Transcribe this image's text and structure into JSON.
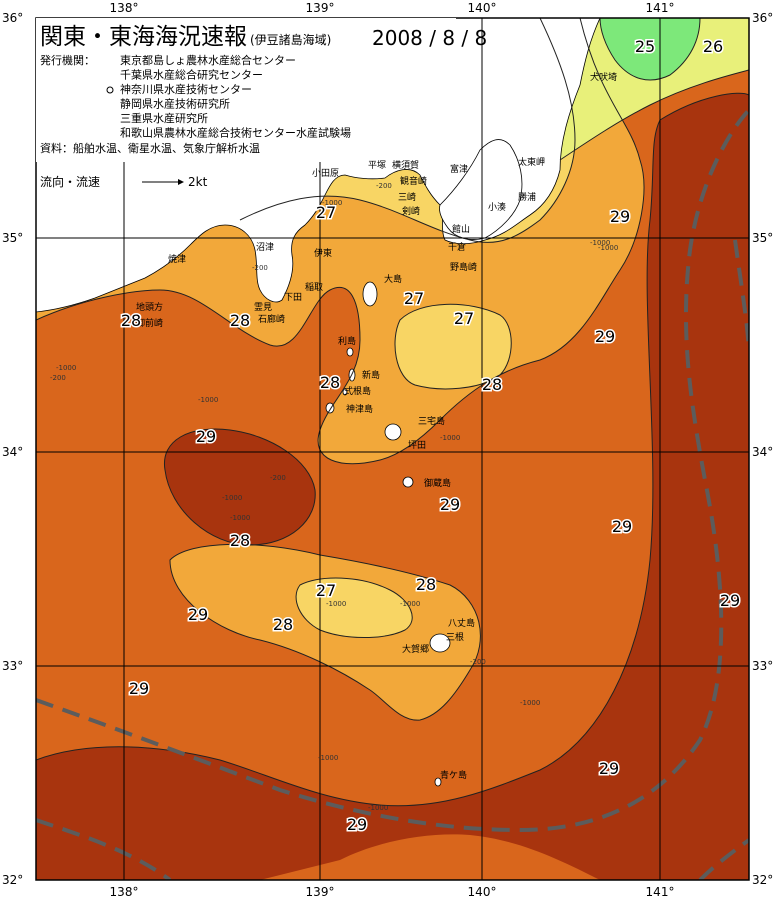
{
  "header": {
    "title": "関東・東海海況速報",
    "area": "(伊豆諸島海域)",
    "date": "2008 / 8 / 8"
  },
  "issuers": {
    "label": "発行機関：",
    "list": [
      "東京都島しょ農林水産総合センター",
      "千葉県水産総合研究センター",
      "神奈川県水産技術センター",
      "静岡県水産技術研究所",
      "三重県水産研究所",
      "和歌山県農林水産総合技術センター水産試験場"
    ],
    "marker": "o"
  },
  "source": "資料：船舶水温、衛星水温、気象庁解析水温",
  "flow_legend": {
    "label": "流向・流速",
    "scale": "2kt"
  },
  "axes": {
    "lon_ticks": [
      "138°",
      "139°",
      "140°",
      "141°"
    ],
    "lat_ticks": [
      "36°",
      "35°",
      "34°",
      "33°",
      "32°"
    ]
  },
  "colors": {
    "t25": "#7de87a",
    "t26": "#e8f07a",
    "t27": "#f8d564",
    "t28": "#f2a83a",
    "t29": "#d9661c",
    "t30": "#a8340e",
    "land": "#ffffff",
    "kuroshio": "#5c5c5c"
  },
  "isotherm_labels": [
    "25",
    "26",
    "27",
    "27",
    "27",
    "27",
    "28",
    "28",
    "28",
    "28",
    "28",
    "28",
    "28",
    "29",
    "29",
    "29",
    "29",
    "29",
    "29",
    "29",
    "29",
    "29",
    "29"
  ],
  "place_names": [
    "平塚",
    "横須賀",
    "観音崎",
    "剣崎",
    "富津",
    "館山",
    "千倉",
    "野島崎",
    "小湊",
    "勝浦",
    "太東岬",
    "犬吠埼",
    "小田原",
    "三崎",
    "沼津",
    "焼津",
    "伊東",
    "稲取",
    "下田",
    "石廊崎",
    "大島",
    "利島",
    "新島",
    "式根島",
    "神津島",
    "三宅島",
    "御蔵島",
    "坪田",
    "地頭方",
    "御前崎",
    "霊見",
    "八丈島",
    "大賀郷",
    "三根",
    "青ケ島"
  ],
  "depth_labels": [
    "-1000",
    "-200",
    "-1000",
    "-1000",
    "-200",
    "-1000",
    "-1000",
    "-1000",
    "-1000",
    "-1000",
    "-1000",
    "-200",
    "-1000",
    "-1000",
    "-200",
    "-1000",
    "-1000",
    "-200"
  ]
}
